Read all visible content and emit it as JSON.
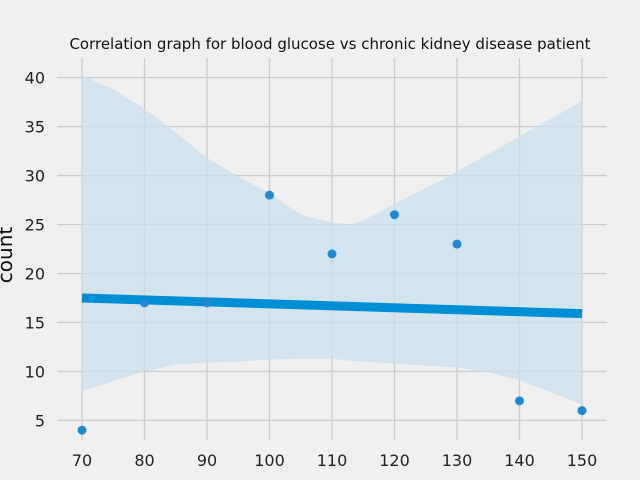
{
  "chart_data": {
    "type": "scatter",
    "title": "Correlation graph for blood glucose vs chronic kidney disease patient",
    "ylabel": "count",
    "xlim": [
      66,
      154
    ],
    "ylim": [
      3,
      42
    ],
    "x_ticks": [
      70,
      80,
      90,
      100,
      110,
      120,
      130,
      140,
      150
    ],
    "y_ticks": [
      5,
      10,
      15,
      20,
      25,
      30,
      35,
      40
    ],
    "grid": true,
    "points": [
      {
        "x": 70,
        "y": 4
      },
      {
        "x": 80,
        "y": 17
      },
      {
        "x": 90,
        "y": 17
      },
      {
        "x": 100,
        "y": 28
      },
      {
        "x": 110,
        "y": 22
      },
      {
        "x": 120,
        "y": 26
      },
      {
        "x": 130,
        "y": 23
      },
      {
        "x": 140,
        "y": 7
      },
      {
        "x": 150,
        "y": 6
      }
    ],
    "regression_line": {
      "x": [
        70,
        150
      ],
      "y": [
        17.5,
        15.9
      ]
    },
    "confidence_band": {
      "x": [
        70,
        75,
        80,
        85,
        90,
        95,
        100,
        105,
        110,
        113,
        115,
        120,
        125,
        130,
        135,
        140,
        145,
        150
      ],
      "upper": [
        40.2,
        38.8,
        36.8,
        34.4,
        31.8,
        29.9,
        28.2,
        26.0,
        25.2,
        25.0,
        25.4,
        27.1,
        28.7,
        30.4,
        32.2,
        34.0,
        35.8,
        37.6
      ],
      "lower": [
        8.0,
        9.0,
        10.0,
        10.7,
        10.9,
        11.0,
        11.2,
        11.3,
        11.3,
        11.1,
        11.0,
        10.8,
        10.6,
        10.4,
        9.9,
        9.1,
        7.9,
        6.6
      ]
    },
    "colors": {
      "points": "#1f8ad2",
      "line": "#008fd5",
      "band": "#c9e0ee",
      "grid": "#cbcbcb",
      "background": "#f0f0f0"
    }
  }
}
